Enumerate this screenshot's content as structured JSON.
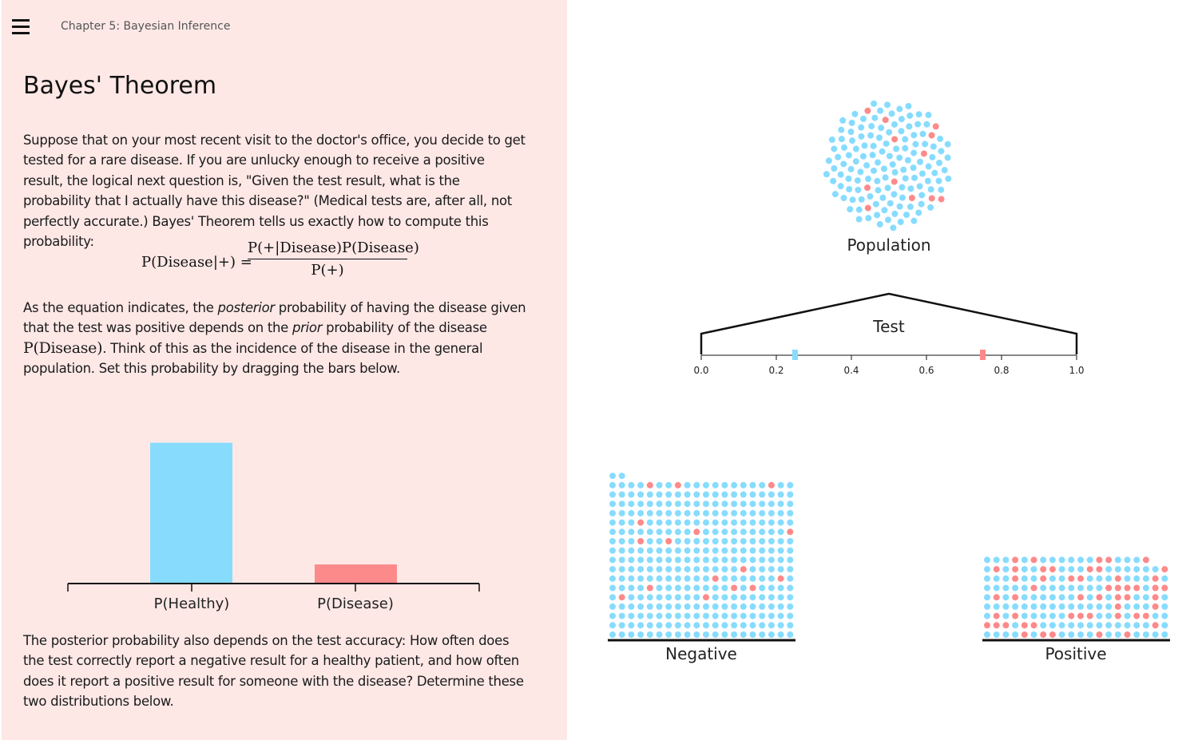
{
  "header": {
    "chapter": "Chapter 5: Bayesian Inference",
    "menu_icon": "hamburger-icon"
  },
  "article": {
    "title": "Bayes' Theorem",
    "para1": "Suppose that on your most recent visit to the doctor's office, you decide to get tested for a rare disease. If you are unlucky enough to receive a positive result, the logical next question is, \"Given the test result, what is the probability that I actually have this disease?\" (Medical tests are, after all, not perfectly accurate.) Bayes' Theorem tells us exactly how to compute this probability:",
    "formula_lhs": "P(Disease|+) =",
    "formula_num": "P(+|Disease)P(Disease)",
    "formula_den": "P(+)",
    "para2_a": "As the equation indicates, the ",
    "para2_em1": "posterior",
    "para2_b": " probability of having the disease given that the test was positive depends on the ",
    "para2_em2": "prior",
    "para2_c": " probability of the disease ",
    "para2_math": "P(Disease)",
    "para2_d": ". Think of this as the incidence of the disease in the general population. Set this probability by dragging the bars below.",
    "para3": "The posterior probability also depends on the test accuracy: How often does the test correctly report a negative result for a healthy patient, and how often does it report a positive result for someone with the disease? Determine these two distributions below."
  },
  "prior_chart": {
    "labels": [
      "P(Healthy)",
      "P(Disease)"
    ],
    "values": [
      0.9,
      0.1
    ],
    "colors": [
      "#87dcfe",
      "#fd8a8a"
    ]
  },
  "population": {
    "label": "Population",
    "healthy_count": 132,
    "disease_count": 12
  },
  "test": {
    "label": "Test",
    "ticks": [
      "0.0",
      "0.2",
      "0.4",
      "0.6",
      "0.8",
      "1.0"
    ],
    "healthy_marker": 0.25,
    "disease_marker": 0.75
  },
  "outcomes": {
    "negative": {
      "label": "Negative",
      "rows": 17,
      "cols": 20,
      "partial_top": 2
    },
    "positive": {
      "label": "Positive",
      "rows": 8,
      "cols": 20,
      "partial_top": 18
    }
  },
  "colors": {
    "healthy": "#87dcfe",
    "disease": "#fd8a8a",
    "panel_bg": "#fde8e6"
  }
}
